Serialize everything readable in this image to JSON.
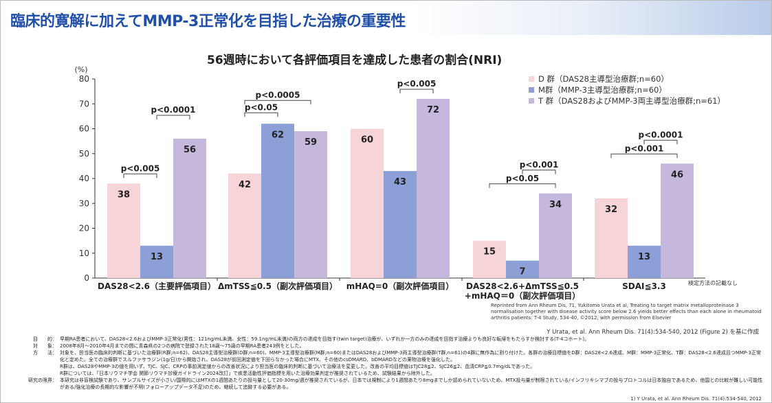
{
  "header": {
    "title": "臨床的寛解に加えてMMP-3正常化を目指した治療の重要性"
  },
  "chart_data": {
    "type": "bar",
    "title": "56週時において各評価項目を達成した患者の割合(NRI)",
    "ylabel": "(%)",
    "ylim": [
      0,
      80
    ],
    "yticks": [
      0,
      10,
      20,
      30,
      40,
      50,
      60,
      70,
      80
    ],
    "categories": [
      "DAS28<2.6（主要評価項目）",
      "ΔmTSS≦0.5（副次評価項目）",
      "mHAQ=0（副次評価項目）",
      "DAS28<2.6+ΔmTSS≦0.5|+mHAQ＝0（副次評価項目）",
      "SDAI≦3.3"
    ],
    "series": [
      {
        "name": "D 群（DAS28主導型治療群;n=60）",
        "color": "#f7d4d8",
        "values": [
          38,
          42,
          60,
          15,
          32
        ]
      },
      {
        "name": "M群（MMP-3主導型治療群;n=60）",
        "color": "#8c9fd6",
        "values": [
          13,
          62,
          43,
          7,
          13
        ]
      },
      {
        "name": "T 群（DAS28およびMMP-3両主導型治療群;n=61）",
        "color": "#c5b8dc",
        "values": [
          56,
          59,
          72,
          34,
          46
        ]
      }
    ],
    "significance": [
      {
        "category": 0,
        "from": 0,
        "to": 1,
        "label": "p<0.005"
      },
      {
        "category": 0,
        "from": 1,
        "to": 2,
        "label": "p<0.0001"
      },
      {
        "category": 1,
        "from": 0,
        "to": 1,
        "label": "p<0.05"
      },
      {
        "category": 1,
        "from": 0,
        "to": 2,
        "label": "p<0.0005"
      },
      {
        "category": 2,
        "from": 1,
        "to": 2,
        "label": "p<0.005"
      },
      {
        "category": 3,
        "from": 0,
        "to": 2,
        "label": "p<0.05"
      },
      {
        "category": 3,
        "from": 1,
        "to": 2,
        "label": "p<0.001"
      },
      {
        "category": 4,
        "from": 0,
        "to": 2,
        "label": "p<0.001"
      },
      {
        "category": 4,
        "from": 1,
        "to": 2,
        "label": "p<0.0001"
      }
    ],
    "grid": false,
    "legend": "top-right"
  },
  "notes": {
    "test_method": "検定方法の記載なし",
    "reprint": "Reprinted from Ann Rheum Dis, 71, Yukitomo Urata et al, Treating to target matrix metalloproteinase 3 normalisation together with disease activity score below 2.6 yields better effects than each alone in rheumatoid arthritis patients: T-4 Study, 534-40, ©2012, with permission from Elsevier",
    "citation": "Y Urata, et al. Ann Rheum Dis. 71(4):534-540, 2012 (Figure 2) を基に作成"
  },
  "footer": {
    "rows": [
      {
        "k": "目　　的：",
        "v": "早期RA患者において、DAS28<2.6およびMMP-3正常化(男性：121ng/mL未満、女性：59.1ng/mL未満)の両方の達成を目指す(twin target)治療が、いずれか一方のみの達成を目指す治療よりも良好な転帰をもたらすか検討する(T-4コホート)。"
      },
      {
        "k": "対　　象：",
        "v": "2008年8月～2010年4月までの間に青森県の2つの病院で登録された18歳～75歳の早期RA患者243例をとした。"
      },
      {
        "k": "方　　法：",
        "v": "対象を、担当医の臨床的判断に基づいた治療群(R群;n=62)、DAS28主導型治療群(D群;n=60)、MMP-3主導型治療群(M群;n=60)またはDAS28およびMMP-3両主導型治療群(T群;n=61)の4群に無作為に割り付けた。各群の治療目標値をD群：DAS28<2.6達成、M群：MMP-3正常化、T群：DAS28<2.6達成且つMMP-3正常化と定めた。全ての治療群でスルファサラジン(1g/日)から開始され、DAS28が前回測定値を下回らなかった場合にMTX、その他のcsDMARD、bDMARDなどの薬物治療を強化した。"
      },
      {
        "k": "",
        "v": "R群は、DAS28やMMP-3の値を用いず、TJC、SJC、CRPの事前測定値からの改善状況により担当医の臨床的判断に基づいて治療法を変更した。改善の平均目標値はTJC28≦2、SJC26≦2、血清CRP≦0.7mg/dLであった。"
      },
      {
        "k": "",
        "v": "R群については、「日本リウマチ学会 関節リウマチ診療ガイドライン2024改訂」で疾患活動性評価指標を用いた治療効果判定が推奨されているため、試験結果から除外した。"
      },
      {
        "k": "研究の限界：",
        "v": "本研究は非盲検試験であり、サンプルサイズが小さい/国際的にはMTXの1週間あたりの投与量として20-30mg/週が推奨されているが、日本では規制により1週間あたり8mgまでしか認められていないため、MTX投与量が制限されている/インフリキシマブの投与プロトコルは日本独自であるため、他国との比較が難しい可能性がある/強化治療の長期的な影響が不明(フォローアップデータ不足)のため、継続して追跡する必要がある。"
      }
    ],
    "reference": "1) Y Urata, et al. Ann Rheum Dis. 71(4):534-540, 2012"
  }
}
